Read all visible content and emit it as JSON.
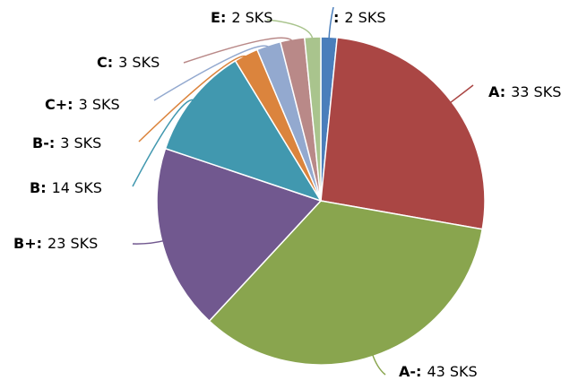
{
  "chart_data": {
    "type": "pie",
    "categories": [
      null,
      "A",
      "A-",
      "B+",
      "B",
      "B-",
      "C+",
      "C",
      "E"
    ],
    "values": [
      2,
      33,
      43,
      23,
      14,
      3,
      3,
      3,
      2
    ],
    "value_labels": [
      "2 SKS",
      "33 SKS",
      "43 SKS",
      "23 SKS",
      "14 SKS",
      "3 SKS",
      "3 SKS",
      "3 SKS",
      "2 SKS"
    ],
    "label_separator": ":",
    "colors": [
      "#4a7ebb",
      "#aa4644",
      "#89a54e",
      "#71588f",
      "#4198af",
      "#db843d",
      "#93a9cf",
      "#b98988",
      "#a9c48d"
    ]
  }
}
